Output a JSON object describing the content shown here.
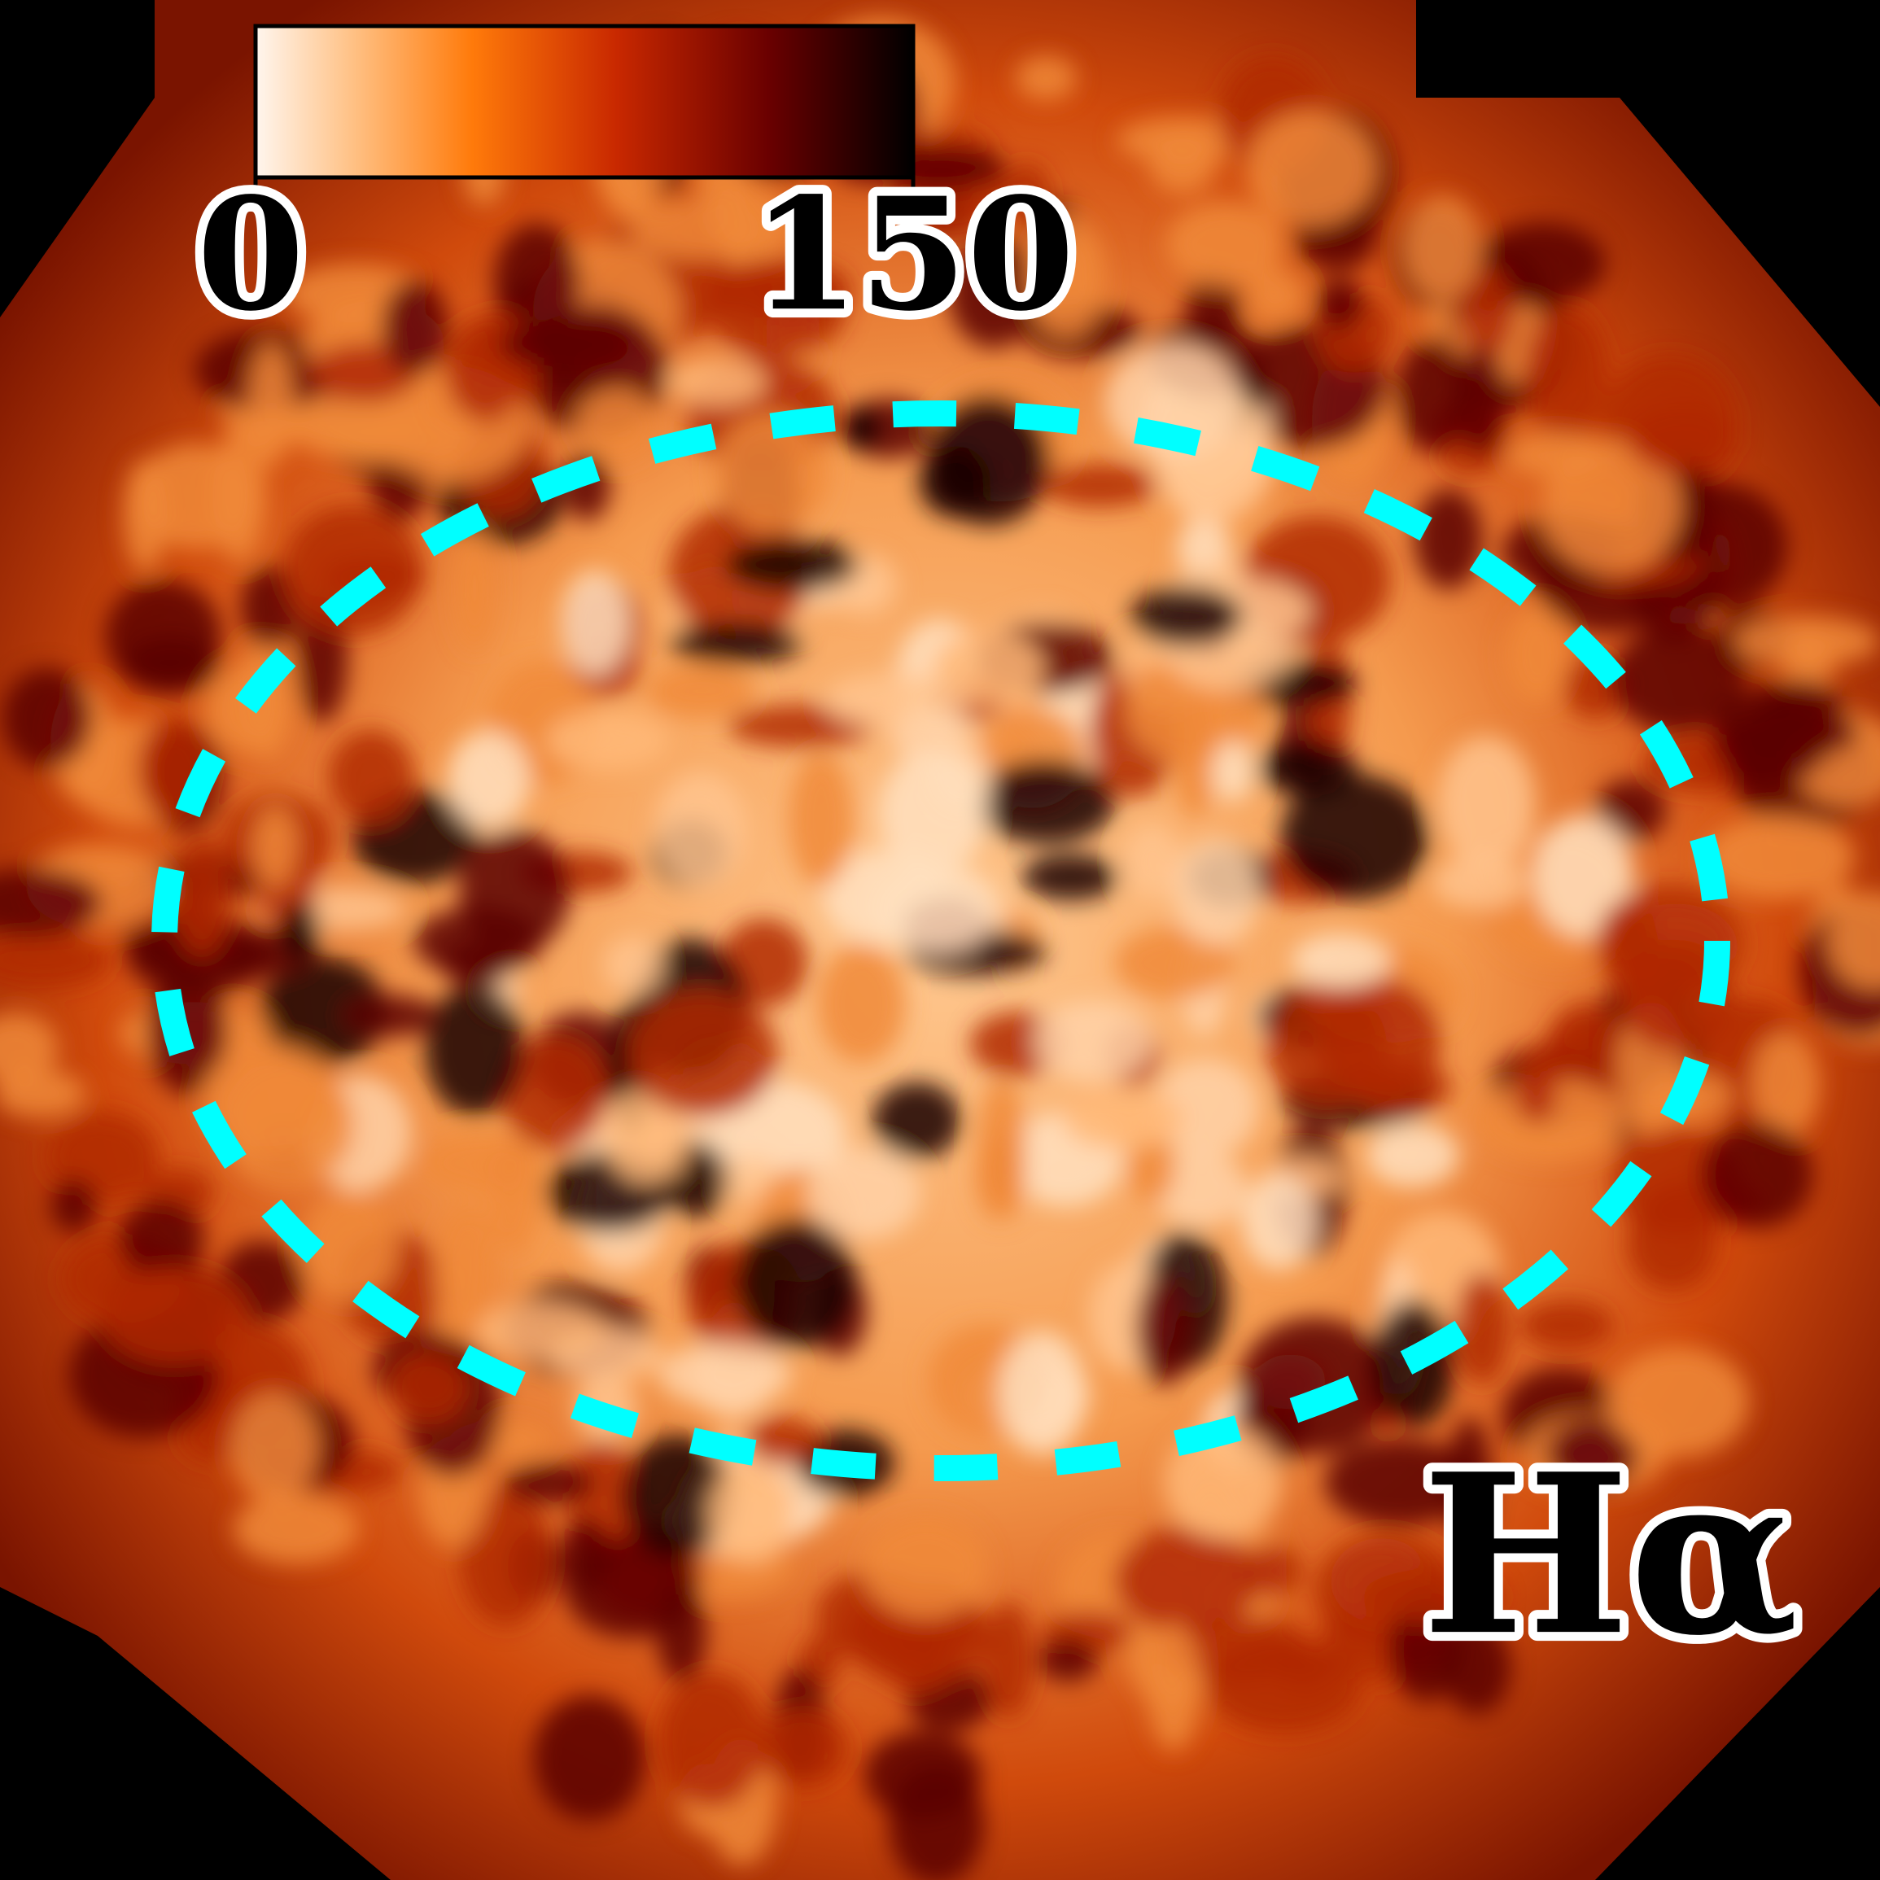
{
  "colorbar": {
    "ticks": [
      0,
      150
    ]
  },
  "label": "Hα"
}
